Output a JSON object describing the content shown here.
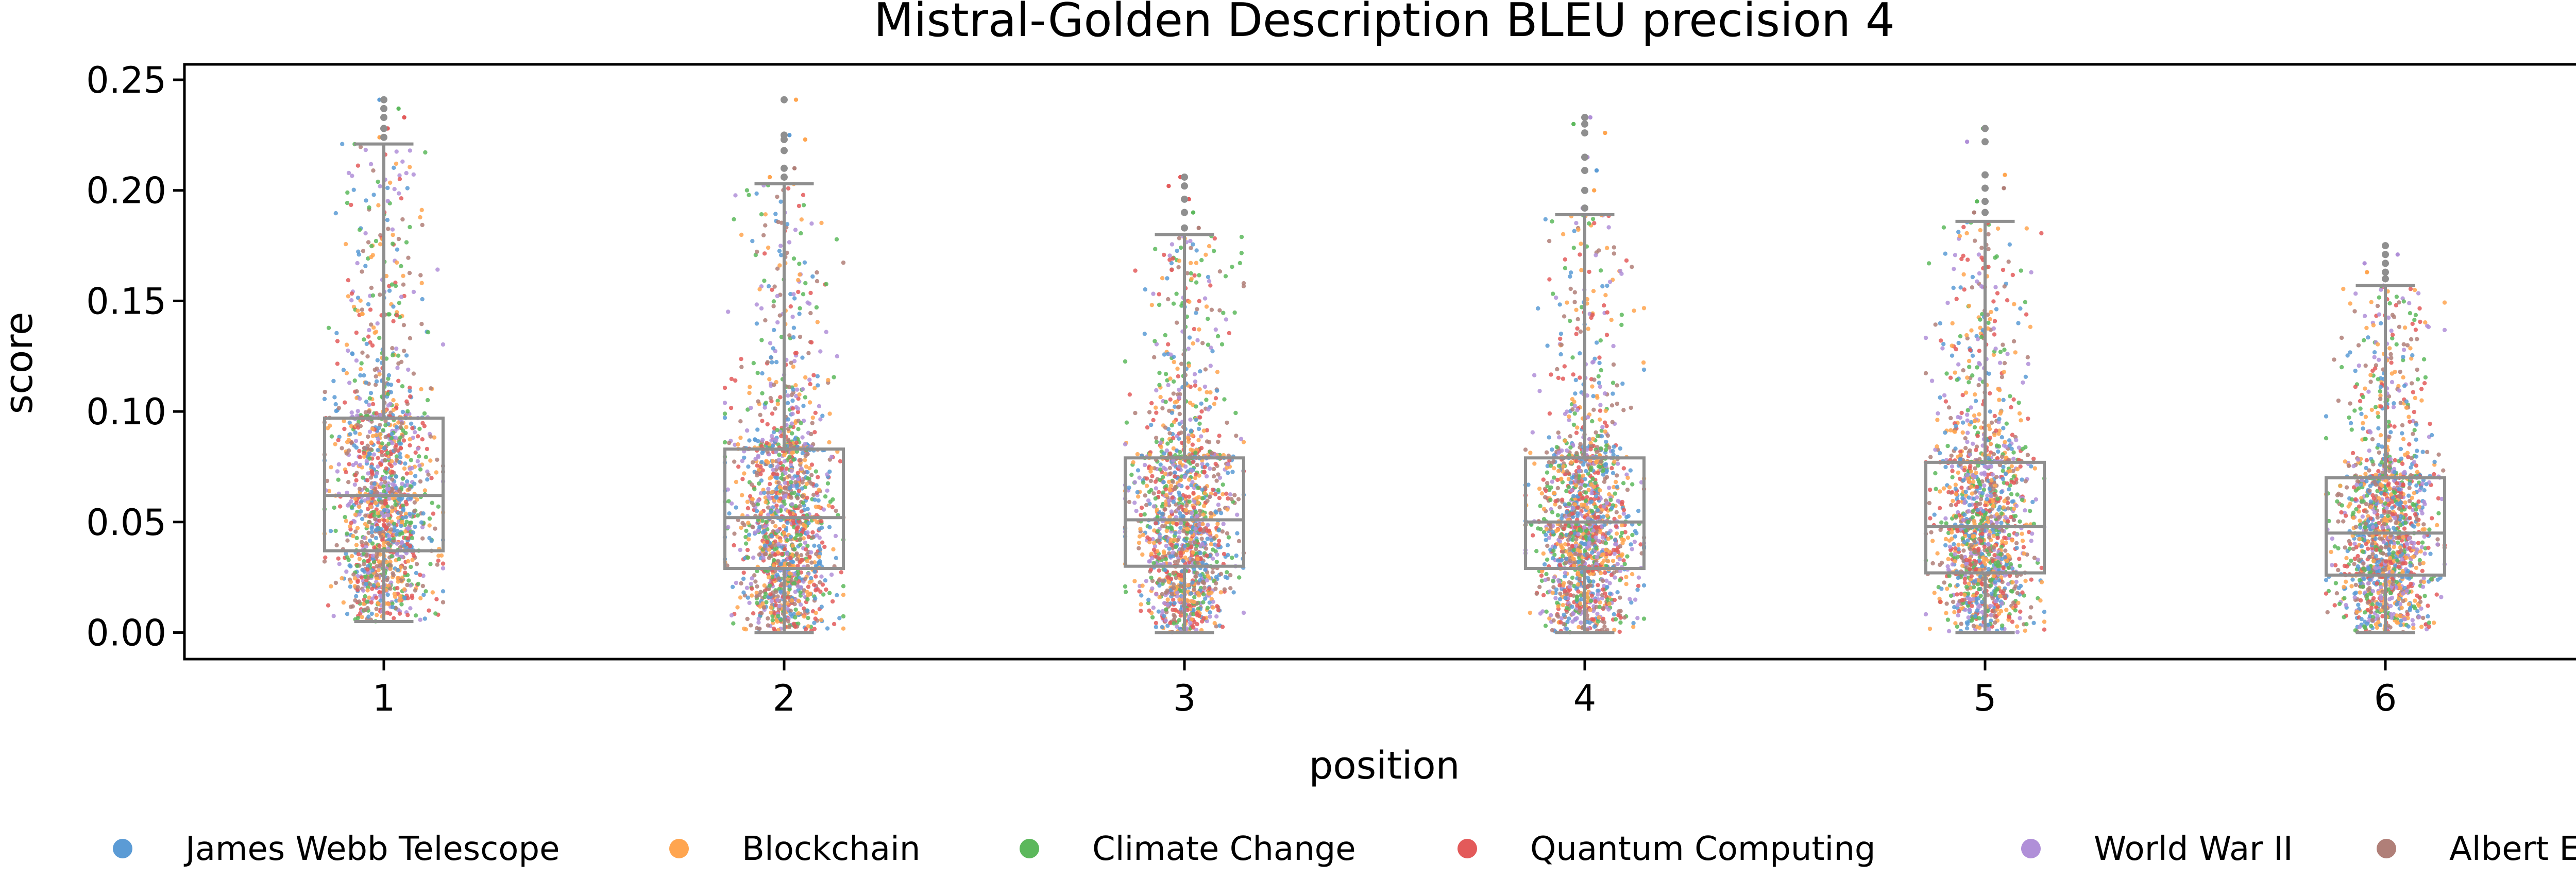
{
  "chart_data": {
    "type": "box-strip",
    "title": "Mistral-Golden Description BLEU precision 4",
    "xlabel": "position",
    "ylabel": "score",
    "categories": [
      "1",
      "2",
      "3",
      "4",
      "5",
      "6"
    ],
    "y_ticks": [
      "0.00",
      "0.05",
      "0.10",
      "0.15",
      "0.20",
      "0.25"
    ],
    "ylim": [
      -0.012,
      0.257
    ],
    "box_stats": [
      {
        "position": "1",
        "whisker_low": 0.005,
        "q1": 0.037,
        "median": 0.062,
        "q3": 0.097,
        "whisker_high": 0.221,
        "outliers": [
          0.224,
          0.228,
          0.233,
          0.237,
          0.241
        ]
      },
      {
        "position": "2",
        "whisker_low": 0.0,
        "q1": 0.029,
        "median": 0.052,
        "q3": 0.083,
        "whisker_high": 0.203,
        "outliers": [
          0.206,
          0.21,
          0.218,
          0.223,
          0.225,
          0.241
        ]
      },
      {
        "position": "3",
        "whisker_low": 0.0,
        "q1": 0.03,
        "median": 0.051,
        "q3": 0.079,
        "whisker_high": 0.18,
        "outliers": [
          0.183,
          0.19,
          0.196,
          0.202,
          0.206
        ]
      },
      {
        "position": "4",
        "whisker_low": 0.0,
        "q1": 0.029,
        "median": 0.05,
        "q3": 0.079,
        "whisker_high": 0.189,
        "outliers": [
          0.192,
          0.2,
          0.209,
          0.215,
          0.226,
          0.23,
          0.233
        ]
      },
      {
        "position": "5",
        "whisker_low": 0.0,
        "q1": 0.027,
        "median": 0.048,
        "q3": 0.077,
        "whisker_high": 0.186,
        "outliers": [
          0.19,
          0.195,
          0.201,
          0.207,
          0.222,
          0.228
        ]
      },
      {
        "position": "6",
        "whisker_low": 0.0,
        "q1": 0.026,
        "median": 0.045,
        "q3": 0.07,
        "whisker_high": 0.157,
        "outliers": [
          0.16,
          0.163,
          0.167,
          0.171,
          0.175
        ]
      }
    ],
    "series": [
      {
        "name": "James Webb Telescope",
        "color": "#5b9bd5"
      },
      {
        "name": "Blockchain",
        "color": "#ffa54f"
      },
      {
        "name": "Climate Change",
        "color": "#5cb85c"
      },
      {
        "name": "Quantum Computing",
        "color": "#e35a5a"
      },
      {
        "name": "World War II",
        "color": "#b08fd8"
      },
      {
        "name": "Albert Einstein",
        "color": "#b07f78"
      }
    ],
    "legend_position": "bottom",
    "grid": false
  }
}
